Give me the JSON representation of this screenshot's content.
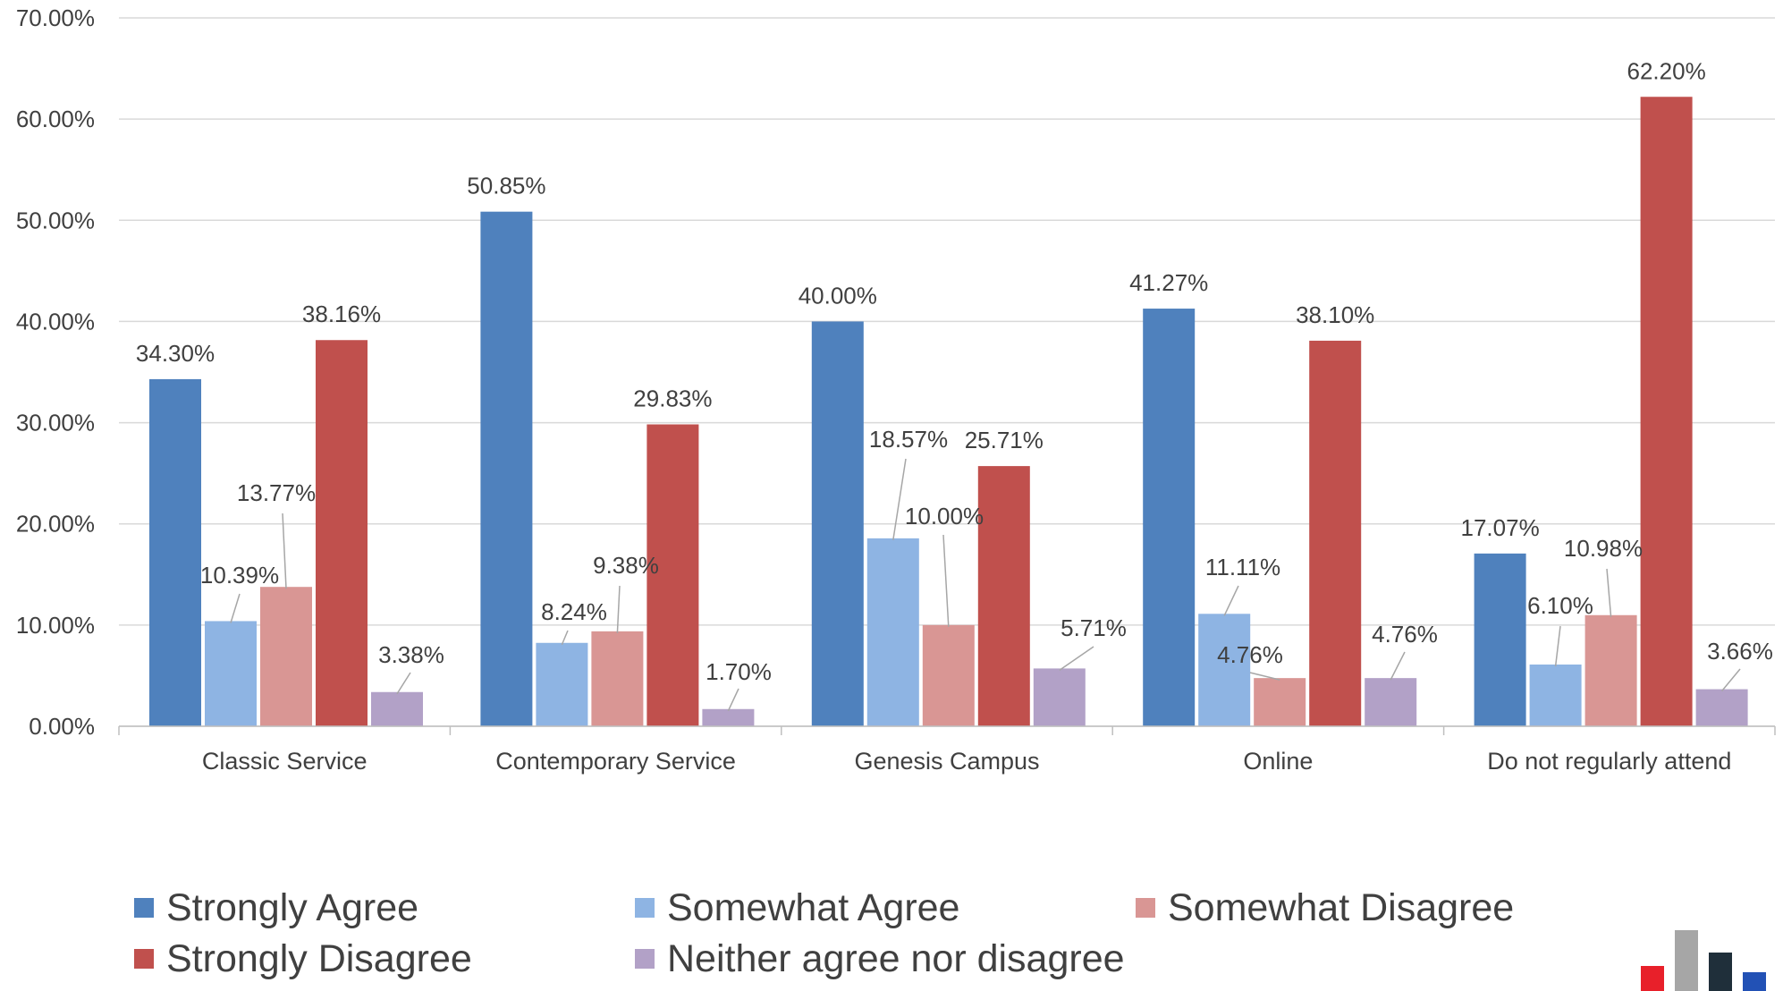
{
  "chart_data": {
    "type": "bar",
    "categories": [
      "Classic Service",
      "Contemporary Service",
      "Genesis Campus",
      "Online",
      "Do not regularly attend"
    ],
    "series": [
      {
        "name": "Strongly Agree",
        "color": "#4f81bd",
        "values": [
          34.3,
          50.85,
          40.0,
          41.27,
          17.07
        ],
        "labels": [
          "34.30%",
          "50.85%",
          "40.00%",
          "41.27%",
          "17.07%"
        ]
      },
      {
        "name": "Somewhat Agree",
        "color": "#8eb4e3",
        "values": [
          10.39,
          8.24,
          18.57,
          11.11,
          6.1
        ],
        "labels": [
          "10.39%",
          "8.24%",
          "18.57%",
          "11.11%",
          "6.10%"
        ]
      },
      {
        "name": "Somewhat Disagree",
        "color": "#d99694",
        "values": [
          13.77,
          9.38,
          10.0,
          4.76,
          10.98
        ],
        "labels": [
          "13.77%",
          "9.38%",
          "10.00%",
          "4.76%",
          "10.98%"
        ]
      },
      {
        "name": "Strongly Disagree",
        "color": "#c0504d",
        "values": [
          38.16,
          29.83,
          25.71,
          38.1,
          62.2
        ],
        "labels": [
          "38.16%",
          "29.83%",
          "25.71%",
          "38.10%",
          "62.20%"
        ]
      },
      {
        "name": "Neither agree nor disagree",
        "color": "#b2a1c7",
        "values": [
          3.38,
          1.7,
          5.71,
          4.76,
          3.66
        ],
        "labels": [
          "3.38%",
          "1.70%",
          "5.71%",
          "4.76%",
          "3.66%"
        ]
      }
    ],
    "yticks": [
      "0.00%",
      "10.00%",
      "20.00%",
      "30.00%",
      "40.00%",
      "50.00%",
      "60.00%",
      "70.00%"
    ],
    "ylim": [
      0,
      70
    ],
    "grid": true,
    "legend_position": "bottom",
    "title": "",
    "xlabel": "",
    "ylabel": ""
  },
  "legend": {
    "items": [
      {
        "label": "Strongly Agree",
        "color": "#4f81bd"
      },
      {
        "label": "Somewhat Agree",
        "color": "#8eb4e3"
      },
      {
        "label": "Somewhat Disagree",
        "color": "#d99694"
      },
      {
        "label": "Strongly Disagree",
        "color": "#c0504d"
      },
      {
        "label": "Neither agree nor disagree",
        "color": "#b2a1c7"
      }
    ]
  },
  "logo": {
    "icon": "bar-logo-icon",
    "colors": [
      "#e8202a",
      "#a6a6a6",
      "#1f2f3a",
      "#2251b5"
    ]
  }
}
